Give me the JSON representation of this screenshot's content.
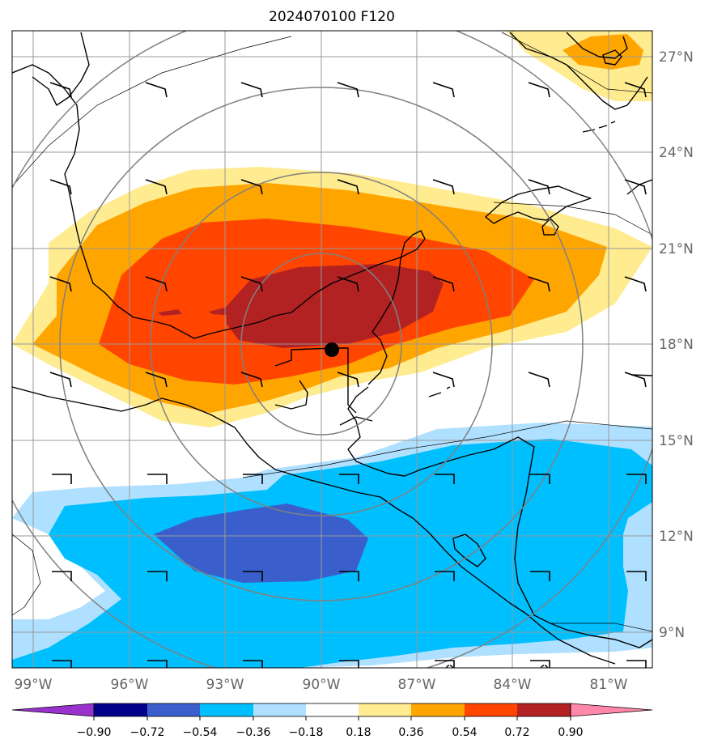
{
  "title": "2024070100 F120",
  "map": {
    "lat_labels": [
      "27°N",
      "24°N",
      "21°N",
      "18°N",
      "15°N",
      "12°N",
      "9°N"
    ],
    "lon_labels": [
      "99°W",
      "96°W",
      "93°W",
      "90°W",
      "87°W",
      "84°W",
      "81°W"
    ],
    "extent": {
      "lon_min": -99.5,
      "lon_max": -79.5,
      "lat_min": 8,
      "lat_max": 28
    },
    "center_point": {
      "lon": -89.7,
      "lat": 17.8
    },
    "range_rings_deg": [
      3,
      5.5,
      8.5,
      11.5
    ]
  },
  "colorbar": {
    "ticks": [
      "−0.90",
      "−0.72",
      "−0.54",
      "−0.36",
      "−0.18",
      "0.18",
      "0.36",
      "0.54",
      "0.72",
      "0.90"
    ],
    "colors": [
      "#9932cc",
      "#00008b",
      "#3a5fcd",
      "#00bfff",
      "#b0e0ff",
      "#ffffff",
      "#ffeb90",
      "#ffa500",
      "#ff4500",
      "#b22222",
      "#ff88aa"
    ]
  },
  "fill_colors": {
    "pos1": "#ffeb90",
    "pos2": "#ffa500",
    "pos3": "#ff4500",
    "pos4": "#b22222",
    "neg1": "#b0e0ff",
    "neg2": "#00bfff",
    "neg3": "#3a5fcd"
  }
}
